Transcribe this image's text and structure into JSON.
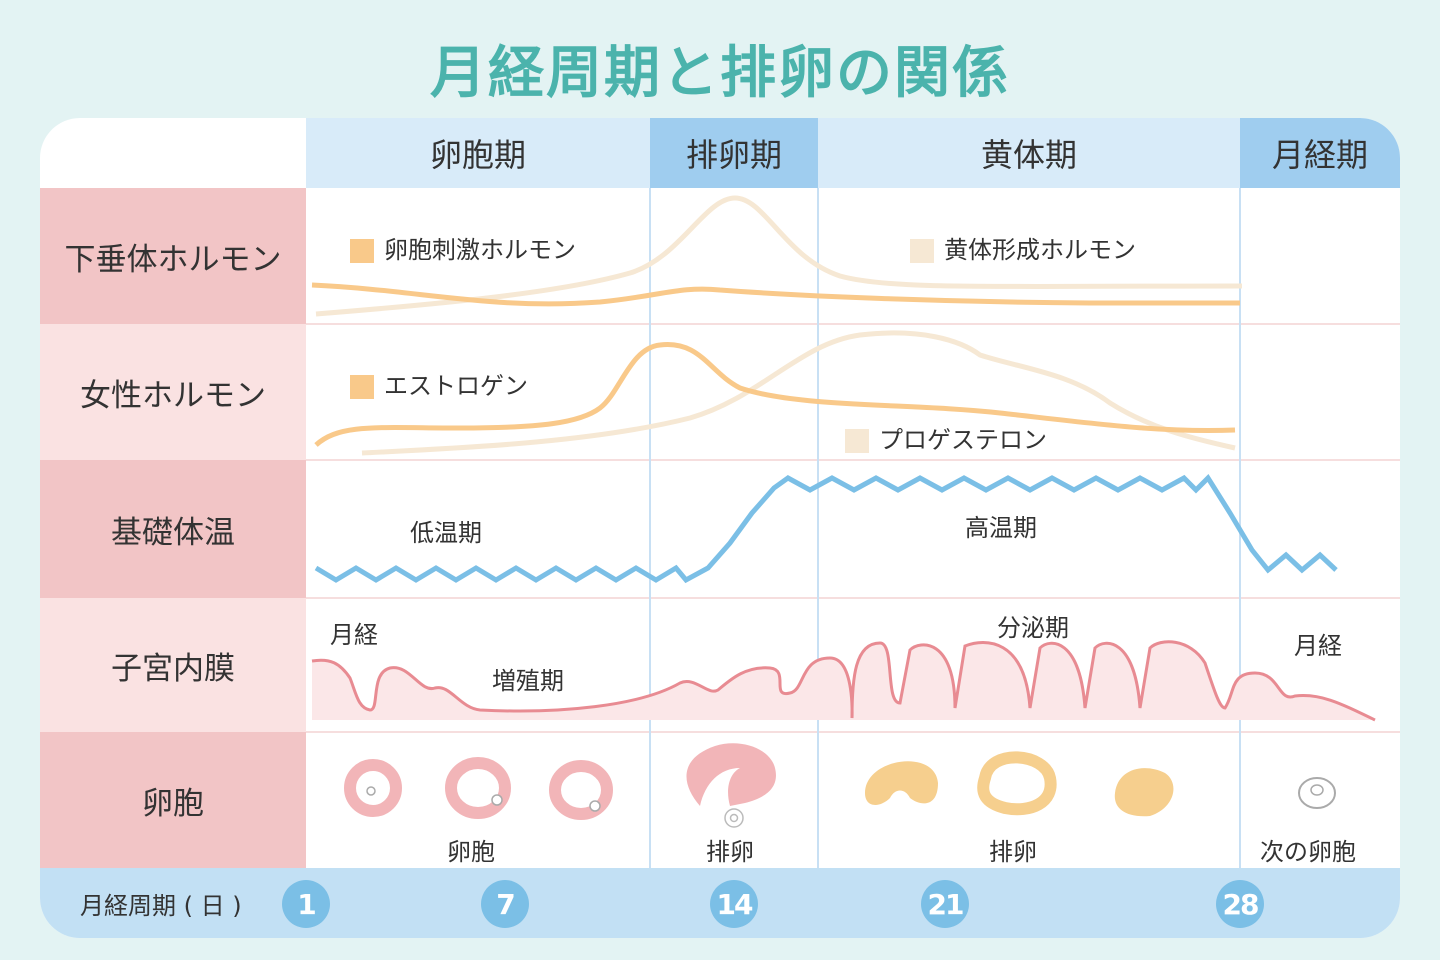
{
  "title": "月経周期と排卵の関係",
  "phases": [
    "卵胞期",
    "排卵期",
    "黄体期",
    "月経期"
  ],
  "rows": [
    "下垂体ホルモン",
    "女性ホルモン",
    "基礎体温",
    "子宮内膜",
    "卵胞"
  ],
  "pituitary": {
    "fsh": "卵胞刺激ホルモン",
    "lh": "黄体形成ホルモン"
  },
  "ovarian": {
    "estrogen": "エストロゲン",
    "progesterone": "プロゲステロン"
  },
  "bbt": {
    "low": "低温期",
    "high": "高温期"
  },
  "endometrium": {
    "menses1": "月経",
    "proliferative": "増殖期",
    "secretory": "分泌期",
    "menses2": "月経"
  },
  "follicle": {
    "f1": "卵胞",
    "f2": "排卵",
    "f3": "排卵",
    "f4": "次の卵胞"
  },
  "footer": {
    "label": "月経周期 ( 日 )",
    "days": [
      "1",
      "7",
      "14",
      "21",
      "28"
    ]
  },
  "colors": {
    "accent": "#4bb3ac",
    "fsh": "#f9c98a",
    "lh": "#f6e8d4",
    "bbt": "#7bbfe6",
    "endometrium": "#e88b92",
    "follicle": "#f2b5b8",
    "corpus": "#f6cf8e"
  }
}
